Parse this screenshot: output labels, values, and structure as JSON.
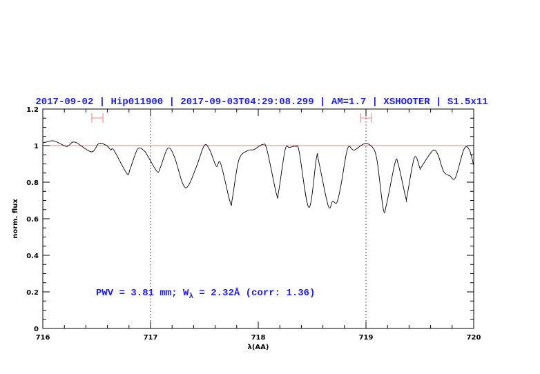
{
  "chart_data": {
    "type": "line",
    "title": "2017-09-02 | Hip011900 | 2017-09-03T04:29:08.299 | AM=1.7 | XSHOOTER | S1.5x11",
    "xlabel": "λ(AA)",
    "ylabel": "norm. flux",
    "xlim": [
      716,
      720
    ],
    "ylim": [
      0,
      1.2
    ],
    "x_ticks": [
      "716",
      "717",
      "718",
      "719",
      "720"
    ],
    "y_ticks": [
      "0",
      "0.2",
      "0.4",
      "0.6",
      "0.8",
      "1",
      "1.2"
    ],
    "reference_line": 1,
    "reference_line_color": "#e08080",
    "marker_lines": [
      717,
      719
    ],
    "error_bars": [
      [
        716.455,
        716.558
      ],
      [
        718.95,
        719.05
      ]
    ],
    "error_bar_color": "#f08080",
    "annotation": {
      "prefix": "PWV = 3.81 mm; W",
      "subscript": "λ",
      "suffix": " = 2.32Å (corr: 1.36)"
    },
    "text_color": "#1a1aff",
    "series": [
      {
        "color": "#000000",
        "x": [
          716.0,
          716.03,
          716.1,
          716.21,
          716.24,
          716.3,
          716.45,
          716.52,
          716.59,
          716.63,
          716.66,
          716.78,
          716.81,
          716.88,
          716.94,
          716.97,
          717.06,
          717.09,
          717.16,
          717.22,
          717.3,
          717.35,
          717.43,
          717.5,
          717.55,
          717.61,
          717.65,
          717.74,
          717.76,
          717.82,
          717.9,
          717.96,
          718.04,
          718.08,
          718.17,
          718.19,
          718.25,
          718.29,
          718.35,
          718.38,
          718.47,
          718.54,
          718.56,
          718.65,
          718.69,
          718.73,
          718.77,
          718.83,
          718.89,
          718.98,
          719.05,
          719.1,
          719.16,
          719.19,
          719.27,
          719.3,
          719.37,
          719.38,
          719.45,
          719.5,
          719.51,
          719.62,
          719.67,
          719.72,
          719.78,
          719.83,
          719.91,
          719.96,
          720.0
        ],
        "y": [
          1.015,
          1.019,
          1.026,
          0.997,
          1.0,
          1.019,
          0.966,
          1.011,
          1.001,
          0.977,
          0.974,
          0.848,
          0.872,
          0.981,
          0.972,
          0.947,
          0.859,
          0.878,
          0.985,
          0.941,
          0.79,
          0.78,
          0.891,
          1.001,
          0.976,
          0.887,
          0.903,
          0.689,
          0.714,
          0.922,
          0.972,
          0.978,
          1.006,
          0.978,
          0.733,
          0.752,
          0.978,
          0.989,
          0.996,
          0.966,
          0.662,
          0.931,
          0.916,
          0.67,
          0.696,
          0.689,
          0.79,
          0.985,
          0.975,
          1.009,
          0.997,
          0.928,
          0.654,
          0.677,
          0.906,
          0.897,
          0.714,
          0.721,
          0.935,
          0.878,
          0.88,
          0.972,
          0.947,
          0.859,
          0.834,
          0.825,
          0.981,
          0.976,
          0.891
        ]
      }
    ]
  }
}
